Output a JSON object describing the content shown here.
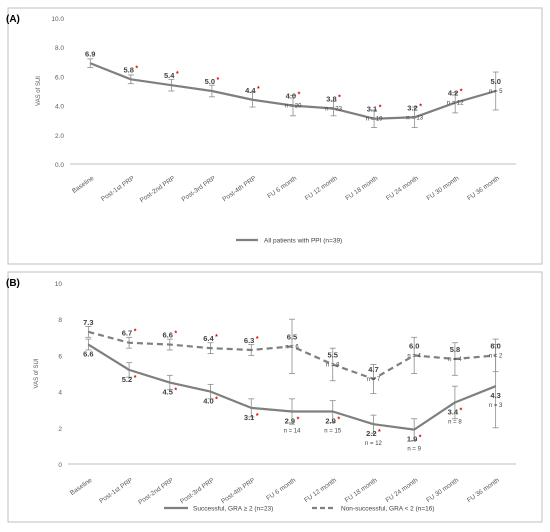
{
  "chart_data": [
    {
      "type": "line",
      "panel_label": "(A)",
      "ylabel": "VAS of SUI",
      "ylim": [
        0,
        10
      ],
      "yticks": [
        "0.0",
        "2.0",
        "4.0",
        "6.0",
        "8.0",
        "10.0"
      ],
      "grid": false,
      "legend_position": "bottom-center",
      "categories": [
        "Baseline",
        "Post-1st PRP",
        "Post-2nd PRP",
        "Post-3rd PRP",
        "Post-4th PRP",
        "FU 6 month",
        "FU 12 month",
        "FU 18 month",
        "FU 24 month",
        "FU 30 month",
        "FU 36 month"
      ],
      "series": [
        {
          "name": "All patients with PPI (n=39)",
          "color": "#7f7f7f",
          "dash": "solid",
          "values": [
            6.9,
            5.8,
            5.4,
            5.0,
            4.4,
            4.0,
            3.8,
            3.1,
            3.2,
            4.2,
            5.0
          ],
          "labels": [
            "6.9",
            "5.8",
            "5.4",
            "5.0",
            "4.4",
            "4.0",
            "3.8",
            "3.1",
            "3.2",
            "4.2",
            "5.0"
          ],
          "significant": [
            false,
            true,
            true,
            true,
            true,
            true,
            true,
            true,
            true,
            true,
            false
          ],
          "n_labels": [
            "",
            "",
            "",
            "",
            "",
            "n = 20",
            "n = 23",
            "n = 19",
            "n = 13",
            "n = 12",
            "n = 5"
          ],
          "error": [
            0.3,
            0.3,
            0.4,
            0.4,
            0.5,
            0.7,
            0.5,
            0.6,
            0.7,
            0.7,
            1.3
          ]
        }
      ]
    },
    {
      "type": "line",
      "panel_label": "(B)",
      "ylabel": "VAS of SUI",
      "ylim": [
        0,
        10
      ],
      "yticks": [
        "0",
        "2",
        "4",
        "6",
        "8",
        "10"
      ],
      "grid": false,
      "legend_position": "bottom-center",
      "categories": [
        "Baseline",
        "Post-1st PRP",
        "Post-2nd PRP",
        "Post-3rd PRP",
        "Post-4th PRP",
        "FU 6 month",
        "FU 12 month",
        "FU 18 month",
        "FU 24 month",
        "FU 30 month",
        "FU 36 month"
      ],
      "series": [
        {
          "name": "Successful, GRA ≥ 2 (n=23)",
          "color": "#7f7f7f",
          "dash": "solid",
          "label_side": "below",
          "values": [
            6.6,
            5.2,
            4.5,
            4.0,
            3.1,
            2.9,
            2.9,
            2.2,
            1.9,
            3.4,
            4.3
          ],
          "labels": [
            "6.6",
            "5.2",
            "4.5",
            "4.0",
            "3.1",
            "2.9",
            "2.9",
            "2.2",
            "1.9",
            "3.4",
            "4.3"
          ],
          "significant": [
            false,
            true,
            true,
            true,
            true,
            true,
            true,
            true,
            true,
            true,
            false
          ],
          "n_labels": [
            "",
            "",
            "",
            "",
            "",
            "n = 14",
            "n = 15",
            "n = 12",
            "n = 9",
            "n = 8",
            "n = 3"
          ],
          "error": [
            0.3,
            0.4,
            0.4,
            0.4,
            0.5,
            0.7,
            0.6,
            0.5,
            0.6,
            0.9,
            2.3
          ]
        },
        {
          "name": "Non-successful, GRA < 2 (n=16)",
          "color": "#7f7f7f",
          "dash": "dashed",
          "label_side": "above",
          "values": [
            7.3,
            6.7,
            6.6,
            6.4,
            6.3,
            6.5,
            5.5,
            4.7,
            6.0,
            5.8,
            6.0
          ],
          "labels": [
            "7.3",
            "6.7",
            "6.6",
            "6.4",
            "6.3",
            "6.5",
            "5.5",
            "4.7",
            "6.0",
            "5.8",
            "6.0"
          ],
          "significant": [
            false,
            true,
            true,
            true,
            true,
            false,
            false,
            false,
            false,
            false,
            false
          ],
          "n_labels": [
            "",
            "",
            "",
            "",
            "",
            "n = 6",
            "n = 8",
            "n = 7",
            "n = 4",
            "n = 4",
            "n = 2"
          ],
          "error": [
            0.3,
            0.3,
            0.3,
            0.3,
            0.3,
            1.5,
            0.9,
            0.8,
            1.0,
            0.9,
            0.9
          ]
        }
      ]
    }
  ]
}
